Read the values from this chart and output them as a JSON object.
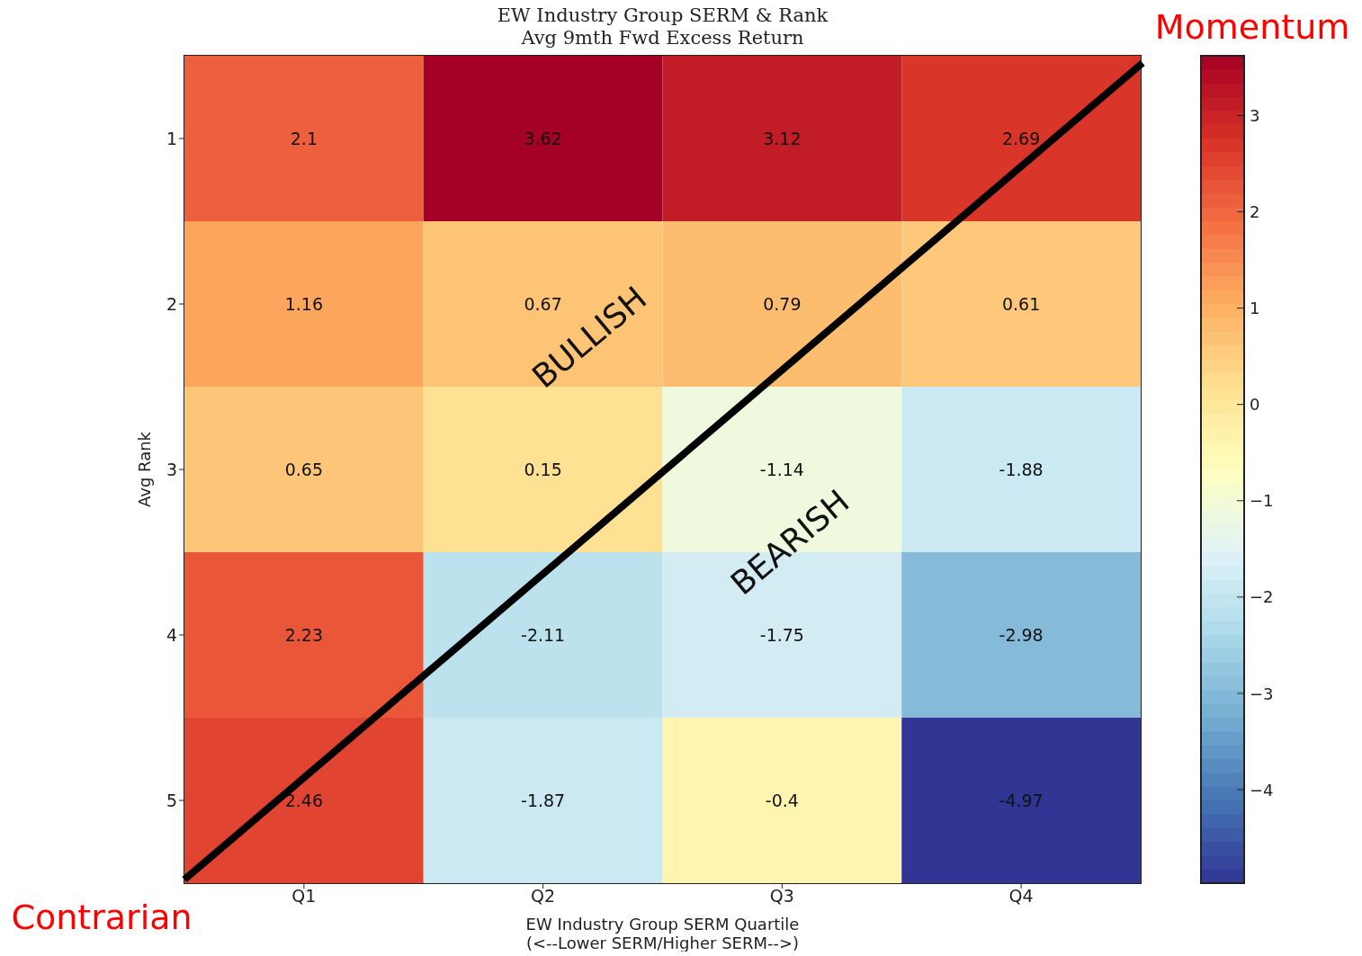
{
  "chart_data": {
    "type": "heatmap",
    "title": "EW Industry Group SERM & Rank\nAvg 9mth Fwd Excess Return",
    "xlabel": "EW Industry Group SERM Quartile\n(<--Lower SERM/Higher SERM-->)",
    "ylabel": "Avg Rank",
    "categories": [
      "Q1",
      "Q2",
      "Q3",
      "Q4"
    ],
    "y_categories": [
      "1",
      "2",
      "3",
      "4",
      "5"
    ],
    "cells": [
      [
        2.1,
        3.62,
        3.12,
        2.69
      ],
      [
        1.16,
        0.67,
        0.79,
        0.61
      ],
      [
        0.65,
        0.15,
        -1.14,
        -1.88
      ],
      [
        2.23,
        -2.11,
        -1.75,
        -2.98
      ],
      [
        2.46,
        -1.87,
        -0.4,
        -4.97
      ]
    ],
    "cell_labels": [
      [
        "2.1",
        "3.62",
        "3.12",
        "2.69"
      ],
      [
        "1.16",
        "0.67",
        "0.79",
        "0.61"
      ],
      [
        "0.65",
        "0.15",
        "-1.14",
        "-1.88"
      ],
      [
        "2.23",
        "-2.11",
        "-1.75",
        "-2.98"
      ],
      [
        "2.46",
        "-1.87",
        "-0.4",
        "-4.97"
      ]
    ],
    "clim": [
      -4.97,
      3.62
    ],
    "cticks": [
      3,
      2,
      1,
      0,
      {
        "value": -1,
        "label": "−1"
      },
      {
        "value": -2,
        "label": "−2"
      },
      {
        "value": -3,
        "label": "−3"
      },
      {
        "value": -4,
        "label": "−4"
      }
    ],
    "annotations": [
      "Momentum",
      "Contrarian",
      "BULLISH",
      "BEARISH"
    ]
  }
}
